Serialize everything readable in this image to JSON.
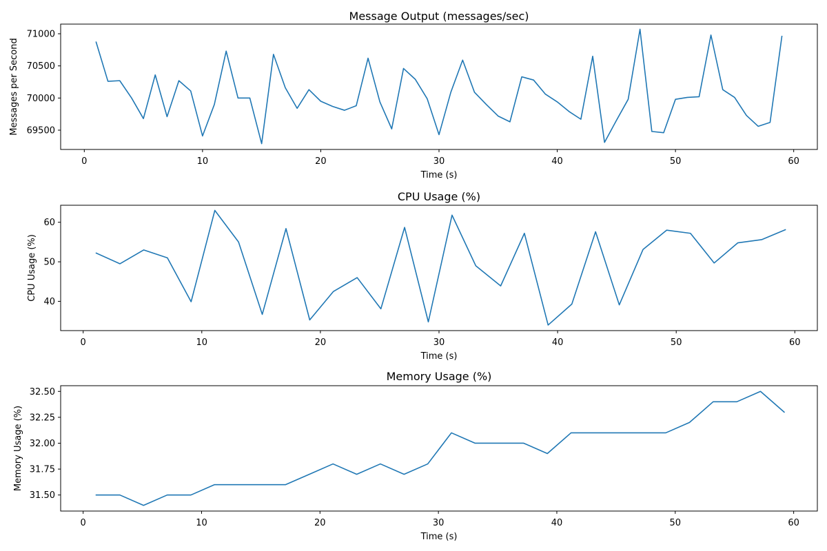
{
  "chart_data": [
    {
      "type": "line",
      "title": "Message Output (messages/sec)",
      "xlabel": "Time (s)",
      "ylabel": "Messages per Second",
      "xlim": [
        -2,
        62
      ],
      "ylim": [
        69200,
        71150
      ],
      "xticks": [
        0,
        10,
        20,
        30,
        40,
        50,
        60
      ],
      "yticks": [
        69500,
        70000,
        70500,
        71000
      ],
      "grid": false,
      "color": "#1f77b4",
      "x": [
        1,
        2,
        3,
        4,
        5,
        6,
        7,
        8,
        9,
        10,
        11,
        12,
        13,
        14,
        15,
        16,
        17,
        18,
        19,
        20,
        21,
        22,
        23,
        24,
        25,
        26,
        27,
        28,
        29,
        30,
        31,
        32,
        33,
        34,
        35,
        36,
        37,
        38,
        39,
        40,
        41,
        42,
        43,
        44,
        45,
        46,
        47,
        48,
        49,
        50,
        51,
        52,
        53,
        54,
        55,
        56,
        57,
        58,
        59
      ],
      "y": [
        70870,
        70260,
        70270,
        70000,
        69680,
        70360,
        69710,
        70270,
        70110,
        69410,
        69900,
        70730,
        70000,
        70000,
        69290,
        70680,
        70160,
        69840,
        70130,
        69950,
        69870,
        69810,
        69880,
        70620,
        69940,
        69520,
        70460,
        70290,
        69990,
        69430,
        70090,
        70590,
        70090,
        69900,
        69720,
        69630,
        70330,
        70280,
        70060,
        69940,
        69790,
        69670,
        70650,
        69310,
        69650,
        69980,
        71070,
        69480,
        69460,
        69980,
        70010,
        70020,
        70980,
        70130,
        70010,
        69730,
        69560,
        69620,
        70960
      ]
    },
    {
      "type": "line",
      "title": "CPU Usage (%)",
      "xlabel": "Time (s)",
      "ylabel": "CPU Usage (%)",
      "xlim": [
        -1.9,
        61.9
      ],
      "ylim": [
        32.6,
        64.3
      ],
      "xticks": [
        0,
        10,
        20,
        30,
        40,
        50,
        60
      ],
      "yticks": [
        40,
        50,
        60
      ],
      "grid": false,
      "color": "#1f77b4",
      "x": [
        1.1,
        3.1,
        5.1,
        7.1,
        9.1,
        11.1,
        13.1,
        15.1,
        17.1,
        19.1,
        21.1,
        23.1,
        25.1,
        27.1,
        29.1,
        31.1,
        33.1,
        35.2,
        37.2,
        39.2,
        41.2,
        43.2,
        45.2,
        47.2,
        49.2,
        51.2,
        53.2,
        55.2,
        57.2,
        59.2
      ],
      "y": [
        52.2,
        49.5,
        53.0,
        51.0,
        39.9,
        63.0,
        55.0,
        36.7,
        58.4,
        35.3,
        42.5,
        46.0,
        38.1,
        58.7,
        34.8,
        61.8,
        49.0,
        43.9,
        57.2,
        34.0,
        39.3,
        57.6,
        39.1,
        53.1,
        58.0,
        57.2,
        49.7,
        54.8,
        55.6,
        58.1
      ]
    },
    {
      "type": "line",
      "title": "Memory Usage (%)",
      "xlabel": "Time (s)",
      "ylabel": "Memory Usage (%)",
      "xlim": [
        -1.9,
        62.0
      ],
      "ylim": [
        31.345,
        32.555
      ],
      "xticks": [
        0,
        10,
        20,
        30,
        40,
        50,
        60
      ],
      "yticks": [
        31.5,
        31.75,
        32.0,
        32.25,
        32.5
      ],
      "ytick_labels": [
        "31.50",
        "31.75",
        "32.00",
        "32.25",
        "32.50"
      ],
      "grid": false,
      "color": "#1f77b4",
      "x": [
        1.1,
        3.1,
        5.1,
        7.1,
        9.1,
        11.1,
        13.1,
        15.1,
        17.1,
        19.1,
        21.1,
        23.1,
        25.1,
        27.1,
        29.1,
        31.1,
        33.1,
        35.2,
        37.2,
        39.2,
        41.2,
        43.2,
        45.2,
        47.2,
        49.2,
        51.2,
        53.2,
        55.2,
        57.2,
        59.2
      ],
      "y": [
        31.5,
        31.5,
        31.4,
        31.5,
        31.5,
        31.6,
        31.6,
        31.6,
        31.6,
        31.7,
        31.8,
        31.7,
        31.8,
        31.7,
        31.8,
        32.1,
        32.0,
        32.0,
        32.0,
        31.9,
        32.1,
        32.1,
        32.1,
        32.1,
        32.1,
        32.2,
        32.4,
        32.4,
        32.5,
        32.3
      ]
    }
  ]
}
